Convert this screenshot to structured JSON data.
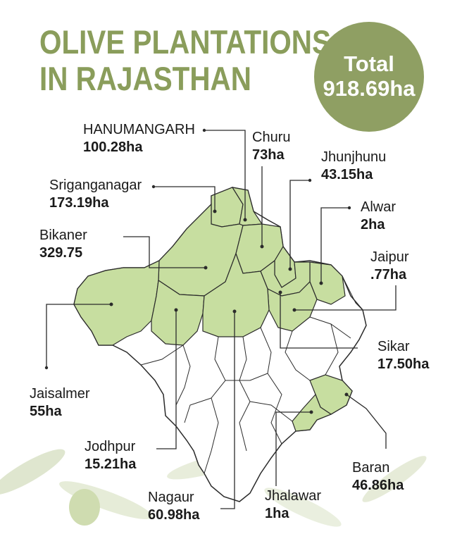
{
  "title": {
    "line1": "OLIVE PLANTATIONS",
    "line2": "IN RAJASTHAN"
  },
  "total": {
    "label": "Total",
    "value": "918.69ha"
  },
  "colors": {
    "title": "#8a9d5b",
    "badge": "#8f9f63",
    "highlight": "#c7dea0",
    "border": "#333333"
  },
  "districts": [
    {
      "name": "HANUMANGARH",
      "value": "100.28ha"
    },
    {
      "name": "Churu",
      "value": "73ha"
    },
    {
      "name": "Jhunjhunu",
      "value": "43.15ha"
    },
    {
      "name": "Sriganganagar",
      "value": "173.19ha"
    },
    {
      "name": "Alwar",
      "value": "2ha"
    },
    {
      "name": "Bikaner",
      "value": "329.75"
    },
    {
      "name": "Jaipur",
      "value": ".77ha"
    },
    {
      "name": "Sikar",
      "value": "17.50ha"
    },
    {
      "name": "Jaisalmer",
      "value": "55ha"
    },
    {
      "name": "Baran",
      "value": "46.86ha"
    },
    {
      "name": "Jodhpur",
      "value": "15.21ha"
    },
    {
      "name": "Nagaur",
      "value": "60.98ha"
    },
    {
      "name": "Jhalawar",
      "value": "1ha"
    }
  ]
}
